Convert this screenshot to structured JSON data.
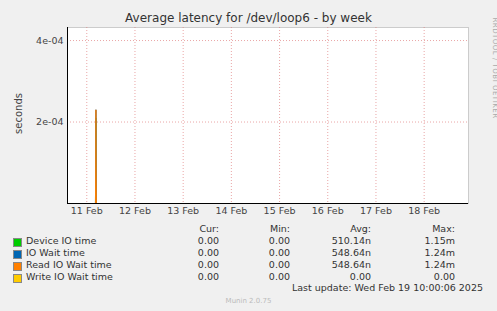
{
  "chart_data": {
    "type": "line",
    "title": "Average latency for /dev/loop6 - by week",
    "y_label": "seconds",
    "x": [
      11.1,
      11.68,
      11.69,
      11.7,
      19.42
    ],
    "xlim": [
      11.1,
      19.42
    ],
    "xticks": [
      {
        "value": 11.5,
        "label": "11 Feb"
      },
      {
        "value": 12.5,
        "label": "12 Feb"
      },
      {
        "value": 13.5,
        "label": "13 Feb"
      },
      {
        "value": 14.5,
        "label": "14 Feb"
      },
      {
        "value": 15.5,
        "label": "15 Feb"
      },
      {
        "value": 16.5,
        "label": "16 Feb"
      },
      {
        "value": 17.5,
        "label": "17 Feb"
      },
      {
        "value": 18.5,
        "label": "18 Feb"
      }
    ],
    "ylim": [
      0,
      0.000432
    ],
    "yticks": [
      {
        "value": 0.0002,
        "label": "2e-04"
      },
      {
        "value": 0.0004,
        "label": "4e-04"
      }
    ],
    "grid": true,
    "summary_columns": [
      "Cur:",
      "Min:",
      "Avg:",
      "Max:"
    ],
    "series": [
      {
        "name": "Device IO time",
        "color": "#00cc00",
        "values": [
          0,
          0,
          0.00021,
          0,
          0
        ],
        "summary": [
          "0.00",
          "0.00",
          "510.14n",
          "1.15m"
        ]
      },
      {
        "name": "IO Wait time",
        "color": "#0066b3",
        "values": [
          0,
          0,
          0.00023,
          0,
          0
        ],
        "summary": [
          "0.00",
          "0.00",
          "548.64n",
          "1.24m"
        ]
      },
      {
        "name": "Read IO Wait time",
        "color": "#ff8000",
        "values": [
          0,
          0,
          0.00023,
          0,
          0
        ],
        "summary": [
          "0.00",
          "0.00",
          "548.64n",
          "1.24m"
        ]
      },
      {
        "name": "Write IO Wait time",
        "color": "#ffcc00",
        "values": [
          0,
          0,
          0,
          0,
          0
        ],
        "summary": [
          "0.00",
          "0.00",
          "0.00",
          "0.00"
        ]
      }
    ],
    "watermark": "RRDTOOL / TOBI OETIKER",
    "footer": "Last update: Wed Feb 19 10:00:06 2025",
    "credit": "Munin 2.0.75"
  }
}
